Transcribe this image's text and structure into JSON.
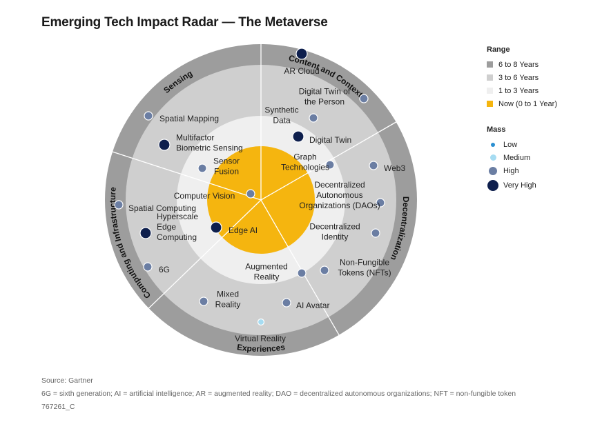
{
  "title": "Emerging Tech Impact Radar — The Metaverse",
  "legend": {
    "range_title": "Range",
    "ranges": [
      {
        "label": "6 to 8 Years",
        "color": "#9d9d9d"
      },
      {
        "label": "3 to 6 Years",
        "color": "#cfcfcf"
      },
      {
        "label": "1 to 3 Years",
        "color": "#efefef"
      },
      {
        "label": "Now (0 to 1 Year)",
        "color": "#f5b50f"
      }
    ],
    "mass_title": "Mass",
    "masses": [
      {
        "label": "Low",
        "color": "#2a8fd1"
      },
      {
        "label": "Medium",
        "color": "#a6dcf2"
      },
      {
        "label": "High",
        "color": "#6b7ea3"
      },
      {
        "label": "Very High",
        "color": "#0e1f4d"
      }
    ]
  },
  "sectors": [
    "Sensing",
    "Content and Context",
    "Decentralization",
    "Experiences",
    "Computing and Infrastructure"
  ],
  "technologies": [
    {
      "lines": [
        "AR Cloud"
      ],
      "mass": "Very High"
    },
    {
      "lines": [
        "Digital Twin of",
        "the Person"
      ],
      "mass": "High"
    },
    {
      "lines": [
        "Synthetic",
        "Data"
      ],
      "mass": "High"
    },
    {
      "lines": [
        "Digital Twin"
      ],
      "mass": "Very High"
    },
    {
      "lines": [
        "Graph",
        "Technologies"
      ],
      "mass": "High"
    },
    {
      "lines": [
        "Web3"
      ],
      "mass": "High"
    },
    {
      "lines": [
        "Decentralized",
        "Autonomous",
        "Organizations (DAOs)"
      ],
      "mass": "High"
    },
    {
      "lines": [
        "Decentralized",
        "Identity"
      ],
      "mass": "High"
    },
    {
      "lines": [
        "Non-Fungible",
        "Tokens (NFTs)"
      ],
      "mass": "High"
    },
    {
      "lines": [
        "Augmented",
        "Reality"
      ],
      "mass": "High"
    },
    {
      "lines": [
        "AI Avatar"
      ],
      "mass": "High"
    },
    {
      "lines": [
        "Mixed",
        "Reality"
      ],
      "mass": "High"
    },
    {
      "lines": [
        "Virtual Reality"
      ],
      "mass": "Medium"
    },
    {
      "lines": [
        "Edge AI"
      ],
      "mass": "Very High"
    },
    {
      "lines": [
        "Computer Vision"
      ],
      "mass": "High"
    },
    {
      "lines": [
        "Sensor",
        "Fusion"
      ],
      "mass": "High"
    },
    {
      "lines": [
        "Multifactor",
        "Biometric Sensing"
      ],
      "mass": "Very High"
    },
    {
      "lines": [
        "Spatial Mapping"
      ],
      "mass": "High"
    },
    {
      "lines": [
        "Spatial Computing"
      ],
      "mass": "High"
    },
    {
      "lines": [
        "Hyperscale",
        "Edge",
        "Computing"
      ],
      "mass": "Very High"
    },
    {
      "lines": [
        "6G"
      ],
      "mass": "High"
    }
  ],
  "footer": {
    "source": "Source: Gartner",
    "abbrev": "6G = sixth generation; AI = artificial intelligence; AR = augmented reality; DAO = decentralized autonomous organizations; NFT = non-fungible token",
    "id": "767261_C"
  }
}
